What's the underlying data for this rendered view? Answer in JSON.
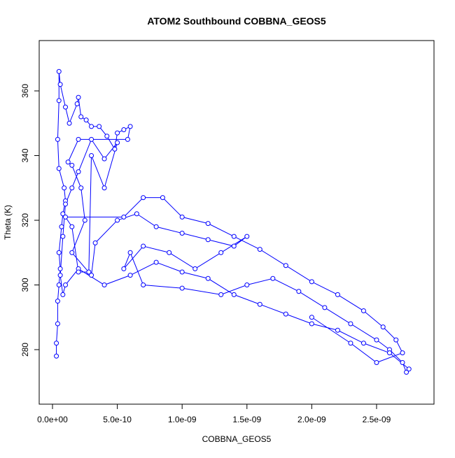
{
  "chart_data": {
    "type": "line",
    "title": "ATOM2 Southbound COBBNA_GEOS5",
    "x_label": "COBBNA_GEOS5",
    "y_label": "Theta (K)",
    "color": "#0000ff",
    "markers": true,
    "x": [
      3e-11,
      3e-11,
      4e-11,
      4e-11,
      5e-11,
      6e-11,
      5e-11,
      7e-11,
      8e-11,
      1e-10,
      9e-11,
      5e-11,
      4e-11,
      5e-11,
      5e-11,
      6e-11,
      1e-10,
      1.3e-10,
      1.9e-10,
      2e-10,
      2.2e-10,
      2.6e-10,
      3e-10,
      3.6e-10,
      4.2e-10,
      4.8e-10,
      5e-10,
      5.5e-10,
      6e-10,
      5.8e-10,
      2e-10,
      1.2e-10,
      1.5e-10,
      2.2e-10,
      2.5e-10,
      1.5e-10,
      3e-10,
      3.3e-10,
      5e-10,
      6.5e-10,
      8e-10,
      1e-09,
      1.2e-09,
      1.4e-09,
      1.5e-09,
      1.3e-09,
      1.1e-09,
      9e-10,
      7e-10,
      5.5e-10,
      6e-10,
      7e-10,
      1e-09,
      1.3e-09,
      1.5e-09,
      1.7e-09,
      1.9e-09,
      2.1e-09,
      2.3e-09,
      2.5e-09,
      2.6e-09,
      2.7e-09,
      2.73e-09,
      2.75e-09,
      2.6e-09,
      2.4e-09,
      2.2e-09,
      2e-09,
      1.8e-09,
      1.6e-09,
      1.4e-09,
      1.2e-09,
      1e-09,
      8e-10,
      6e-10,
      4e-10,
      2e-10,
      1e-10,
      8e-11,
      6e-11,
      8e-11,
      1e-10,
      1.5e-10,
      2e-10,
      3e-10,
      4e-10,
      5e-10,
      4e-10,
      3e-10,
      2.8e-10,
      2e-10,
      1.5e-10,
      1e-10,
      5.5e-10,
      7e-10,
      8.5e-10,
      1e-09,
      1.2e-09,
      1.4e-09,
      1.6e-09,
      1.8e-09,
      2e-09,
      2.2e-09,
      2.4e-09,
      2.55e-09,
      2.65e-09,
      2.7e-09,
      2.5e-09,
      2.3e-09,
      2e-09
    ],
    "values": [
      278,
      282,
      288,
      295,
      300,
      305,
      310,
      318,
      322,
      326,
      330,
      336,
      345,
      357,
      366,
      362,
      355,
      350,
      356,
      358,
      352,
      351,
      349,
      349,
      346,
      342,
      347,
      348,
      349,
      345,
      345,
      338,
      337,
      330,
      320,
      310,
      303,
      313,
      320,
      322,
      318,
      316,
      314,
      312,
      315,
      310,
      305,
      310,
      312,
      305,
      310,
      300,
      299,
      297,
      300,
      302,
      298,
      293,
      288,
      283,
      280,
      276,
      273,
      274,
      279,
      282,
      286,
      288,
      291,
      294,
      297,
      302,
      304,
      307,
      303,
      300,
      305,
      300,
      297,
      303,
      315,
      325,
      330,
      335,
      345,
      339,
      344,
      330,
      340,
      304,
      304,
      318,
      321,
      321,
      327,
      327,
      321,
      319,
      315,
      311,
      306,
      301,
      297,
      292,
      287,
      283,
      279,
      276,
      282,
      290
    ],
    "xlim": [
      -1.026e-10,
      2.943e-09
    ],
    "ylim": [
      263.14,
      375.57
    ],
    "xticks": [
      {
        "value": 0,
        "label": "0.0e+00"
      },
      {
        "value": 5e-10,
        "label": "5.0e-10"
      },
      {
        "value": 1e-09,
        "label": "1.0e-09"
      },
      {
        "value": 1.5e-09,
        "label": "1.5e-09"
      },
      {
        "value": 2e-09,
        "label": "2.0e-09"
      },
      {
        "value": 2.5e-09,
        "label": "2.5e-09"
      }
    ],
    "yticks": [
      280,
      300,
      320,
      340,
      360
    ]
  }
}
